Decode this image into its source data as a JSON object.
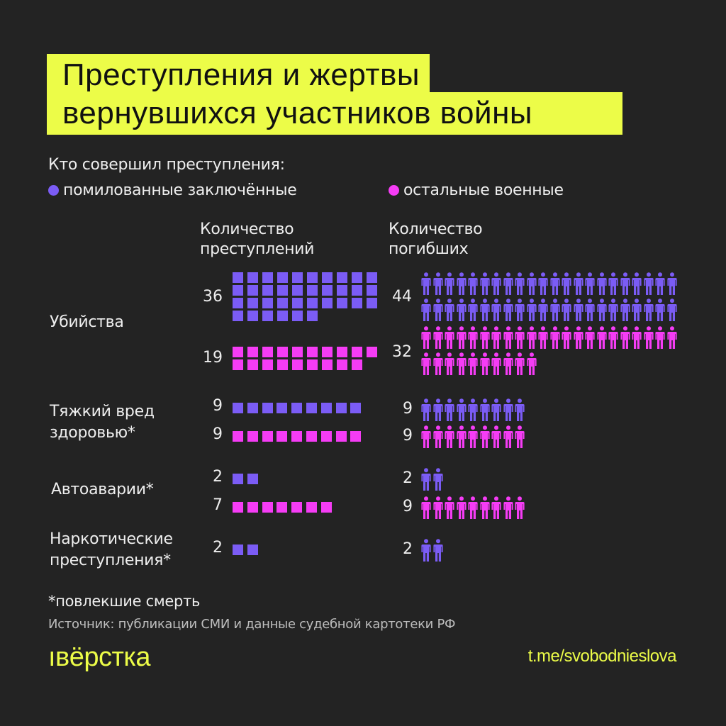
{
  "title": {
    "line1": "Преступления и жертвы",
    "line2": "вернувшихся участников войны"
  },
  "legend": {
    "heading": "Кто совершил преступления:",
    "items": [
      {
        "label": "помилованные заключённые",
        "color": "#7b5cf5"
      },
      {
        "label": "остальные военные",
        "color": "#f53cf5"
      }
    ]
  },
  "columns": {
    "crimes": "Количество\nпреступлений",
    "deaths": "Количество\nпогибших",
    "crimes_l1": "Количество",
    "crimes_l2": "преступлений",
    "deaths_l1": "Количество",
    "deaths_l2": "погибших"
  },
  "categories": [
    {
      "label_l1": "Убийства",
      "label_l2": ""
    },
    {
      "label_l1": "Тяжкий вред",
      "label_l2": "здоровью*"
    },
    {
      "label_l1": "Автоаварии*",
      "label_l2": ""
    },
    {
      "label_l1": "Наркотические",
      "label_l2": "преступления*"
    }
  ],
  "footnote": "*повлекшие смерть",
  "source": "Источник: публикации СМИ и данные судебной картотеки РФ",
  "logo": "ıвёрстка",
  "link": "t.me/svobodnieslova",
  "colors": {
    "background": "#232323",
    "accent_yellow": "#ecfc48",
    "pardoned": "#7b5cf5",
    "other_military": "#f53cf5"
  },
  "chart_data": {
    "type": "table",
    "title": "Преступления и жертвы вернувшихся участников войны",
    "legend": [
      "помилованные заключённые",
      "остальные военные"
    ],
    "categories": [
      "Убийства",
      "Тяжкий вред здоровью*",
      "Автоаварии*",
      "Наркотические преступления*"
    ],
    "series": [
      {
        "name": "Количество преступлений — помилованные заключённые",
        "values": [
          36,
          9,
          2,
          2
        ]
      },
      {
        "name": "Количество преступлений — остальные военные",
        "values": [
          19,
          9,
          7,
          null
        ]
      },
      {
        "name": "Количество погибших — помилованные заключённые",
        "values": [
          44,
          9,
          2,
          2
        ]
      },
      {
        "name": "Количество погибших — остальные военные",
        "values": [
          32,
          9,
          9,
          null
        ]
      }
    ],
    "units": "1 square = 1 crime; 1 figure = 1 victim",
    "note": "*повлекшие смерть"
  },
  "rows": [
    {
      "cat": 0,
      "group": "pardoned",
      "crimes": 36,
      "deaths": 44
    },
    {
      "cat": 0,
      "group": "other",
      "crimes": 19,
      "deaths": 32
    },
    {
      "cat": 1,
      "group": "pardoned",
      "crimes": 9,
      "deaths": 9
    },
    {
      "cat": 1,
      "group": "other",
      "crimes": 9,
      "deaths": 9
    },
    {
      "cat": 2,
      "group": "pardoned",
      "crimes": 2,
      "deaths": 2
    },
    {
      "cat": 2,
      "group": "other",
      "crimes": 7,
      "deaths": 9
    },
    {
      "cat": 3,
      "group": "pardoned",
      "crimes": 2,
      "deaths": 2
    }
  ]
}
